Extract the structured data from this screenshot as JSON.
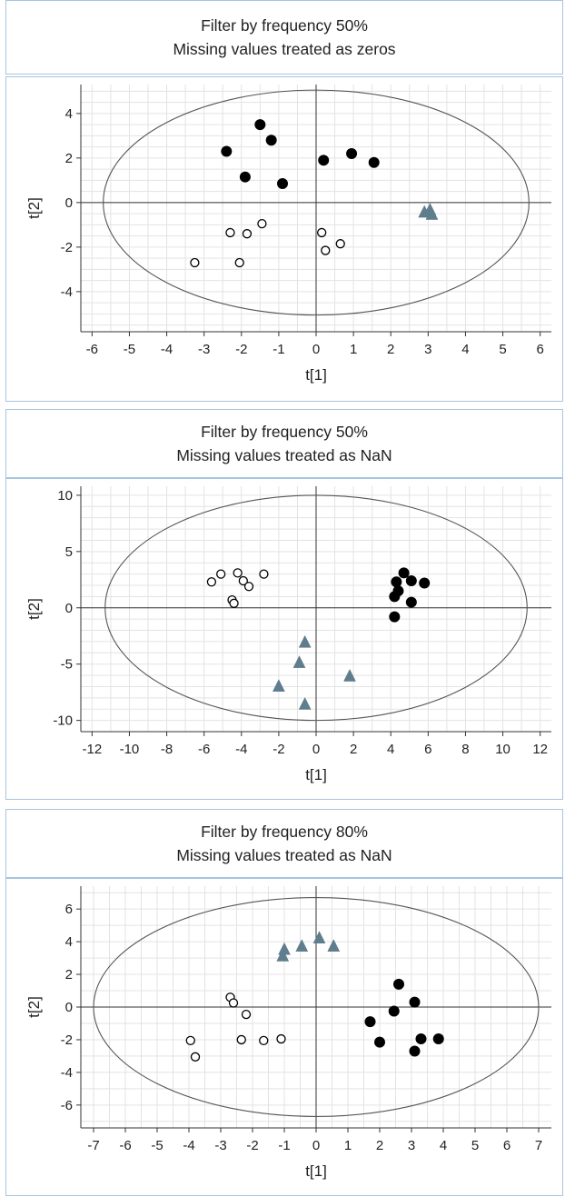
{
  "chart_data": [
    {
      "type": "scatter",
      "title": "Filter by frequency 50%",
      "subtitle": "Missing values treated as zeros",
      "xlabel": "t[1]",
      "ylabel": "t[2]",
      "xlim": [
        -6.3,
        6.3
      ],
      "ylim": [
        -5.8,
        5.3
      ],
      "xticks": [
        -6,
        -5,
        -4,
        -3,
        -2,
        -1,
        0,
        1,
        2,
        3,
        4,
        5,
        6
      ],
      "yticks": [
        -4,
        -2,
        0,
        2,
        4
      ],
      "xtick_labels": [
        "-6",
        "-5",
        "-4",
        "-3",
        "-2",
        "-1",
        "0",
        "1",
        "2",
        "3",
        "4",
        "5",
        "6"
      ],
      "ytick_labels": [
        "-4",
        "-2",
        "0",
        "2",
        "4"
      ],
      "grid": true,
      "minor_grid_step_x": 0.5,
      "minor_grid_step_y": 0.5,
      "ellipse": {
        "center": [
          0,
          0
        ],
        "rx": 5.7,
        "ry": 5.05
      },
      "series": [
        {
          "marker": "filled-circle",
          "color": "#000000",
          "points": [
            [
              -2.4,
              2.3
            ],
            [
              -1.5,
              3.5
            ],
            [
              -1.2,
              2.8
            ],
            [
              -1.9,
              1.15
            ],
            [
              -0.9,
              0.85
            ],
            [
              0.2,
              1.9
            ],
            [
              0.95,
              2.2
            ],
            [
              1.55,
              1.8
            ]
          ]
        },
        {
          "marker": "open-circle",
          "color": "#000000",
          "points": [
            [
              -3.25,
              -2.7
            ],
            [
              -2.3,
              -1.35
            ],
            [
              -1.85,
              -1.4
            ],
            [
              -2.05,
              -2.7
            ],
            [
              -1.45,
              -0.95
            ],
            [
              0.15,
              -1.35
            ],
            [
              0.25,
              -2.15
            ],
            [
              0.65,
              -1.85
            ]
          ]
        },
        {
          "marker": "triangle",
          "color": "#5f7d8c",
          "points": [
            [
              2.9,
              -0.45
            ],
            [
              3.05,
              -0.35
            ],
            [
              3.1,
              -0.55
            ]
          ]
        }
      ]
    },
    {
      "type": "scatter",
      "title": "Filter by frequency 50%",
      "subtitle": "Missing values treated as NaN",
      "xlabel": "t[1]",
      "ylabel": "t[2]",
      "xlim": [
        -12.6,
        12.6
      ],
      "ylim": [
        -11,
        10.8
      ],
      "xticks": [
        -12,
        -10,
        -8,
        -6,
        -4,
        -2,
        0,
        2,
        4,
        6,
        8,
        10,
        12
      ],
      "yticks": [
        -10,
        -5,
        0,
        5,
        10
      ],
      "xtick_labels": [
        "-12",
        "-10",
        "-8",
        "-6",
        "-4",
        "-2",
        "0",
        "2",
        "4",
        "6",
        "8",
        "10",
        "12"
      ],
      "ytick_labels": [
        "-10",
        "-5",
        "0",
        "5",
        "10"
      ],
      "grid": true,
      "minor_grid_step_x": 1,
      "minor_grid_step_y": 1,
      "ellipse": {
        "center": [
          0,
          0
        ],
        "rx": 11.3,
        "ry": 10
      },
      "series": [
        {
          "marker": "filled-circle",
          "color": "#000000",
          "points": [
            [
              4.3,
              2.3
            ],
            [
              4.7,
              3.1
            ],
            [
              4.4,
              1.5
            ],
            [
              4.2,
              1.0
            ],
            [
              5.1,
              2.4
            ],
            [
              5.8,
              2.2
            ],
            [
              5.1,
              0.5
            ],
            [
              4.2,
              -0.8
            ]
          ]
        },
        {
          "marker": "open-circle",
          "color": "#000000",
          "points": [
            [
              -5.6,
              2.3
            ],
            [
              -5.1,
              3.0
            ],
            [
              -4.2,
              3.1
            ],
            [
              -3.9,
              2.4
            ],
            [
              -3.6,
              1.9
            ],
            [
              -2.8,
              3.0
            ],
            [
              -4.5,
              0.7
            ],
            [
              -4.4,
              0.4
            ]
          ]
        },
        {
          "marker": "triangle",
          "color": "#5f7d8c",
          "points": [
            [
              -0.6,
              -3.1
            ],
            [
              -0.9,
              -4.9
            ],
            [
              -2.0,
              -7.0
            ],
            [
              -0.6,
              -8.6
            ],
            [
              1.8,
              -6.1
            ]
          ]
        }
      ]
    },
    {
      "type": "scatter",
      "title": "Filter by frequency 80%",
      "subtitle": "Missing values treated as NaN",
      "xlabel": "t[1]",
      "ylabel": "t[2]",
      "xlim": [
        -7.4,
        7.4
      ],
      "ylim": [
        -7.4,
        7.4
      ],
      "xticks": [
        -7,
        -6,
        -5,
        -4,
        -3,
        -2,
        -1,
        0,
        1,
        2,
        3,
        4,
        5,
        6,
        7
      ],
      "yticks": [
        -6,
        -4,
        -2,
        0,
        2,
        4,
        6
      ],
      "xtick_labels": [
        "-7",
        "-6",
        "-5",
        "-4",
        "-3",
        "-2",
        "-1",
        "0",
        "1",
        "2",
        "3",
        "4",
        "5",
        "6",
        "7"
      ],
      "ytick_labels": [
        "-6",
        "-4",
        "-2",
        "0",
        "2",
        "4",
        "6"
      ],
      "grid": true,
      "minor_grid_step_x": 0.5,
      "minor_grid_step_y": 1,
      "ellipse": {
        "center": [
          0,
          0
        ],
        "rx": 7.0,
        "ry": 6.7
      },
      "series": [
        {
          "marker": "filled-circle",
          "color": "#000000",
          "points": [
            [
              2.6,
              1.4
            ],
            [
              2.45,
              -0.25
            ],
            [
              1.7,
              -0.9
            ],
            [
              2.0,
              -2.15
            ],
            [
              3.1,
              0.3
            ],
            [
              3.3,
              -1.95
            ],
            [
              3.85,
              -1.95
            ],
            [
              3.1,
              -2.7
            ]
          ]
        },
        {
          "marker": "open-circle",
          "color": "#000000",
          "points": [
            [
              -2.7,
              0.6
            ],
            [
              -2.6,
              0.25
            ],
            [
              -2.2,
              -0.45
            ],
            [
              -2.35,
              -2.0
            ],
            [
              -1.65,
              -2.05
            ],
            [
              -1.1,
              -1.95
            ],
            [
              -3.95,
              -2.05
            ],
            [
              -3.8,
              -3.05
            ]
          ]
        },
        {
          "marker": "triangle",
          "color": "#5f7d8c",
          "points": [
            [
              -1.05,
              3.1
            ],
            [
              -1.0,
              3.5
            ],
            [
              -0.45,
              3.7
            ],
            [
              0.1,
              4.2
            ],
            [
              0.55,
              3.7
            ]
          ]
        }
      ]
    }
  ]
}
